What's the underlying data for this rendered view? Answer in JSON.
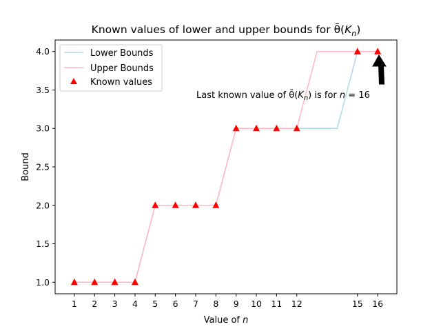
{
  "chart_data": {
    "type": "line",
    "title": "Known values of lower and upper bounds for θ̄(K_n)",
    "title_parts": {
      "prefix": "Known values of lower and upper bounds for ",
      "theta": "θ̄",
      "paren_open": "(",
      "K": "K",
      "sub": "n",
      "paren_close": ")"
    },
    "xlabel": "Value of n",
    "xlabel_parts": {
      "prefix": "Value of ",
      "var": "n"
    },
    "ylabel": "Bound",
    "xlim": [
      0.05,
      16.95
    ],
    "ylim": [
      0.85,
      4.15
    ],
    "xticks": [
      1,
      2,
      3,
      4,
      5,
      6,
      7,
      8,
      9,
      10,
      11,
      12,
      15,
      16
    ],
    "xtick_labels": [
      "1",
      "2",
      "3",
      "4",
      "5",
      "6",
      "7",
      "8",
      "9",
      "10",
      "11",
      "12",
      "15",
      "16"
    ],
    "yticks": [
      1.0,
      1.5,
      2.0,
      2.5,
      3.0,
      3.5,
      4.0
    ],
    "ytick_labels": [
      "1.0",
      "1.5",
      "2.0",
      "2.5",
      "3.0",
      "3.5",
      "4.0"
    ],
    "grid": false,
    "legend_position": "top-left",
    "series": [
      {
        "name": "Lower Bounds",
        "kind": "line",
        "color": "#add8e6",
        "x": [
          1,
          2,
          3,
          4,
          5,
          6,
          7,
          8,
          9,
          10,
          11,
          12,
          13,
          14,
          15,
          16
        ],
        "y": [
          1,
          1,
          1,
          1,
          2,
          2,
          2,
          2,
          3,
          3,
          3,
          3,
          3,
          3,
          4,
          4
        ]
      },
      {
        "name": "Upper Bounds",
        "kind": "line",
        "color": "#ffb6c1",
        "x": [
          1,
          2,
          3,
          4,
          5,
          6,
          7,
          8,
          9,
          10,
          11,
          12,
          13,
          14,
          15,
          16
        ],
        "y": [
          1,
          1,
          1,
          1,
          2,
          2,
          2,
          2,
          3,
          3,
          3,
          3,
          4,
          4,
          4,
          4
        ]
      },
      {
        "name": "Known values",
        "kind": "scatter",
        "color": "#ff0000",
        "marker": "triangle",
        "x": [
          1,
          2,
          3,
          4,
          5,
          6,
          7,
          8,
          9,
          10,
          11,
          12,
          15,
          16
        ],
        "y": [
          1,
          1,
          1,
          1,
          2,
          2,
          2,
          2,
          3,
          3,
          3,
          3,
          4,
          4
        ]
      }
    ],
    "annotation": {
      "text": "Last known value of θ̄(K_n) is for n = 16",
      "parts": {
        "prefix": "Last known value of ",
        "theta": "θ̄",
        "paren_open": "(",
        "K": "K",
        "sub": "n",
        "paren_close": ")",
        "mid": " is for  ",
        "var": "n",
        "eq": " = 16"
      },
      "points_to": {
        "x": 16,
        "y": 4.0
      },
      "arrow_color": "#000000"
    }
  }
}
